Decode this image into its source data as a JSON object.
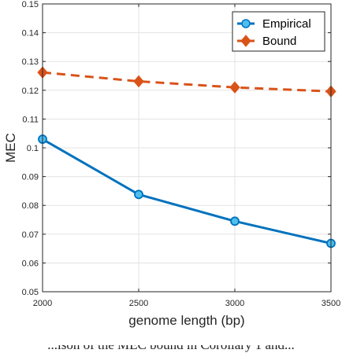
{
  "chart_data": {
    "type": "line",
    "title": "",
    "xlabel": "genome length (bp)",
    "ylabel": "MEC",
    "x": [
      2000,
      2500,
      3000,
      3500
    ],
    "xticks": [
      2000,
      2500,
      3000,
      3500
    ],
    "yticks": [
      0.05,
      0.06,
      0.07,
      0.08,
      0.09,
      0.1,
      0.11,
      0.12,
      0.13,
      0.14,
      0.15
    ],
    "xlim": [
      2000,
      3500
    ],
    "ylim": [
      0.05,
      0.15
    ],
    "grid": true,
    "legend_position": "top-right",
    "series": [
      {
        "name": "Empirical",
        "values": [
          0.103,
          0.0838,
          0.0745,
          0.0668
        ],
        "color": "#0072BD",
        "line_style": "solid",
        "marker": "circle"
      },
      {
        "name": "Bound",
        "values": [
          0.1262,
          0.1231,
          0.121,
          0.1196
        ],
        "color": "#D95319",
        "line_style": "dashed",
        "marker": "diamond"
      }
    ]
  },
  "caption": "...ison of the MEC bound in Corollary 1 and..."
}
